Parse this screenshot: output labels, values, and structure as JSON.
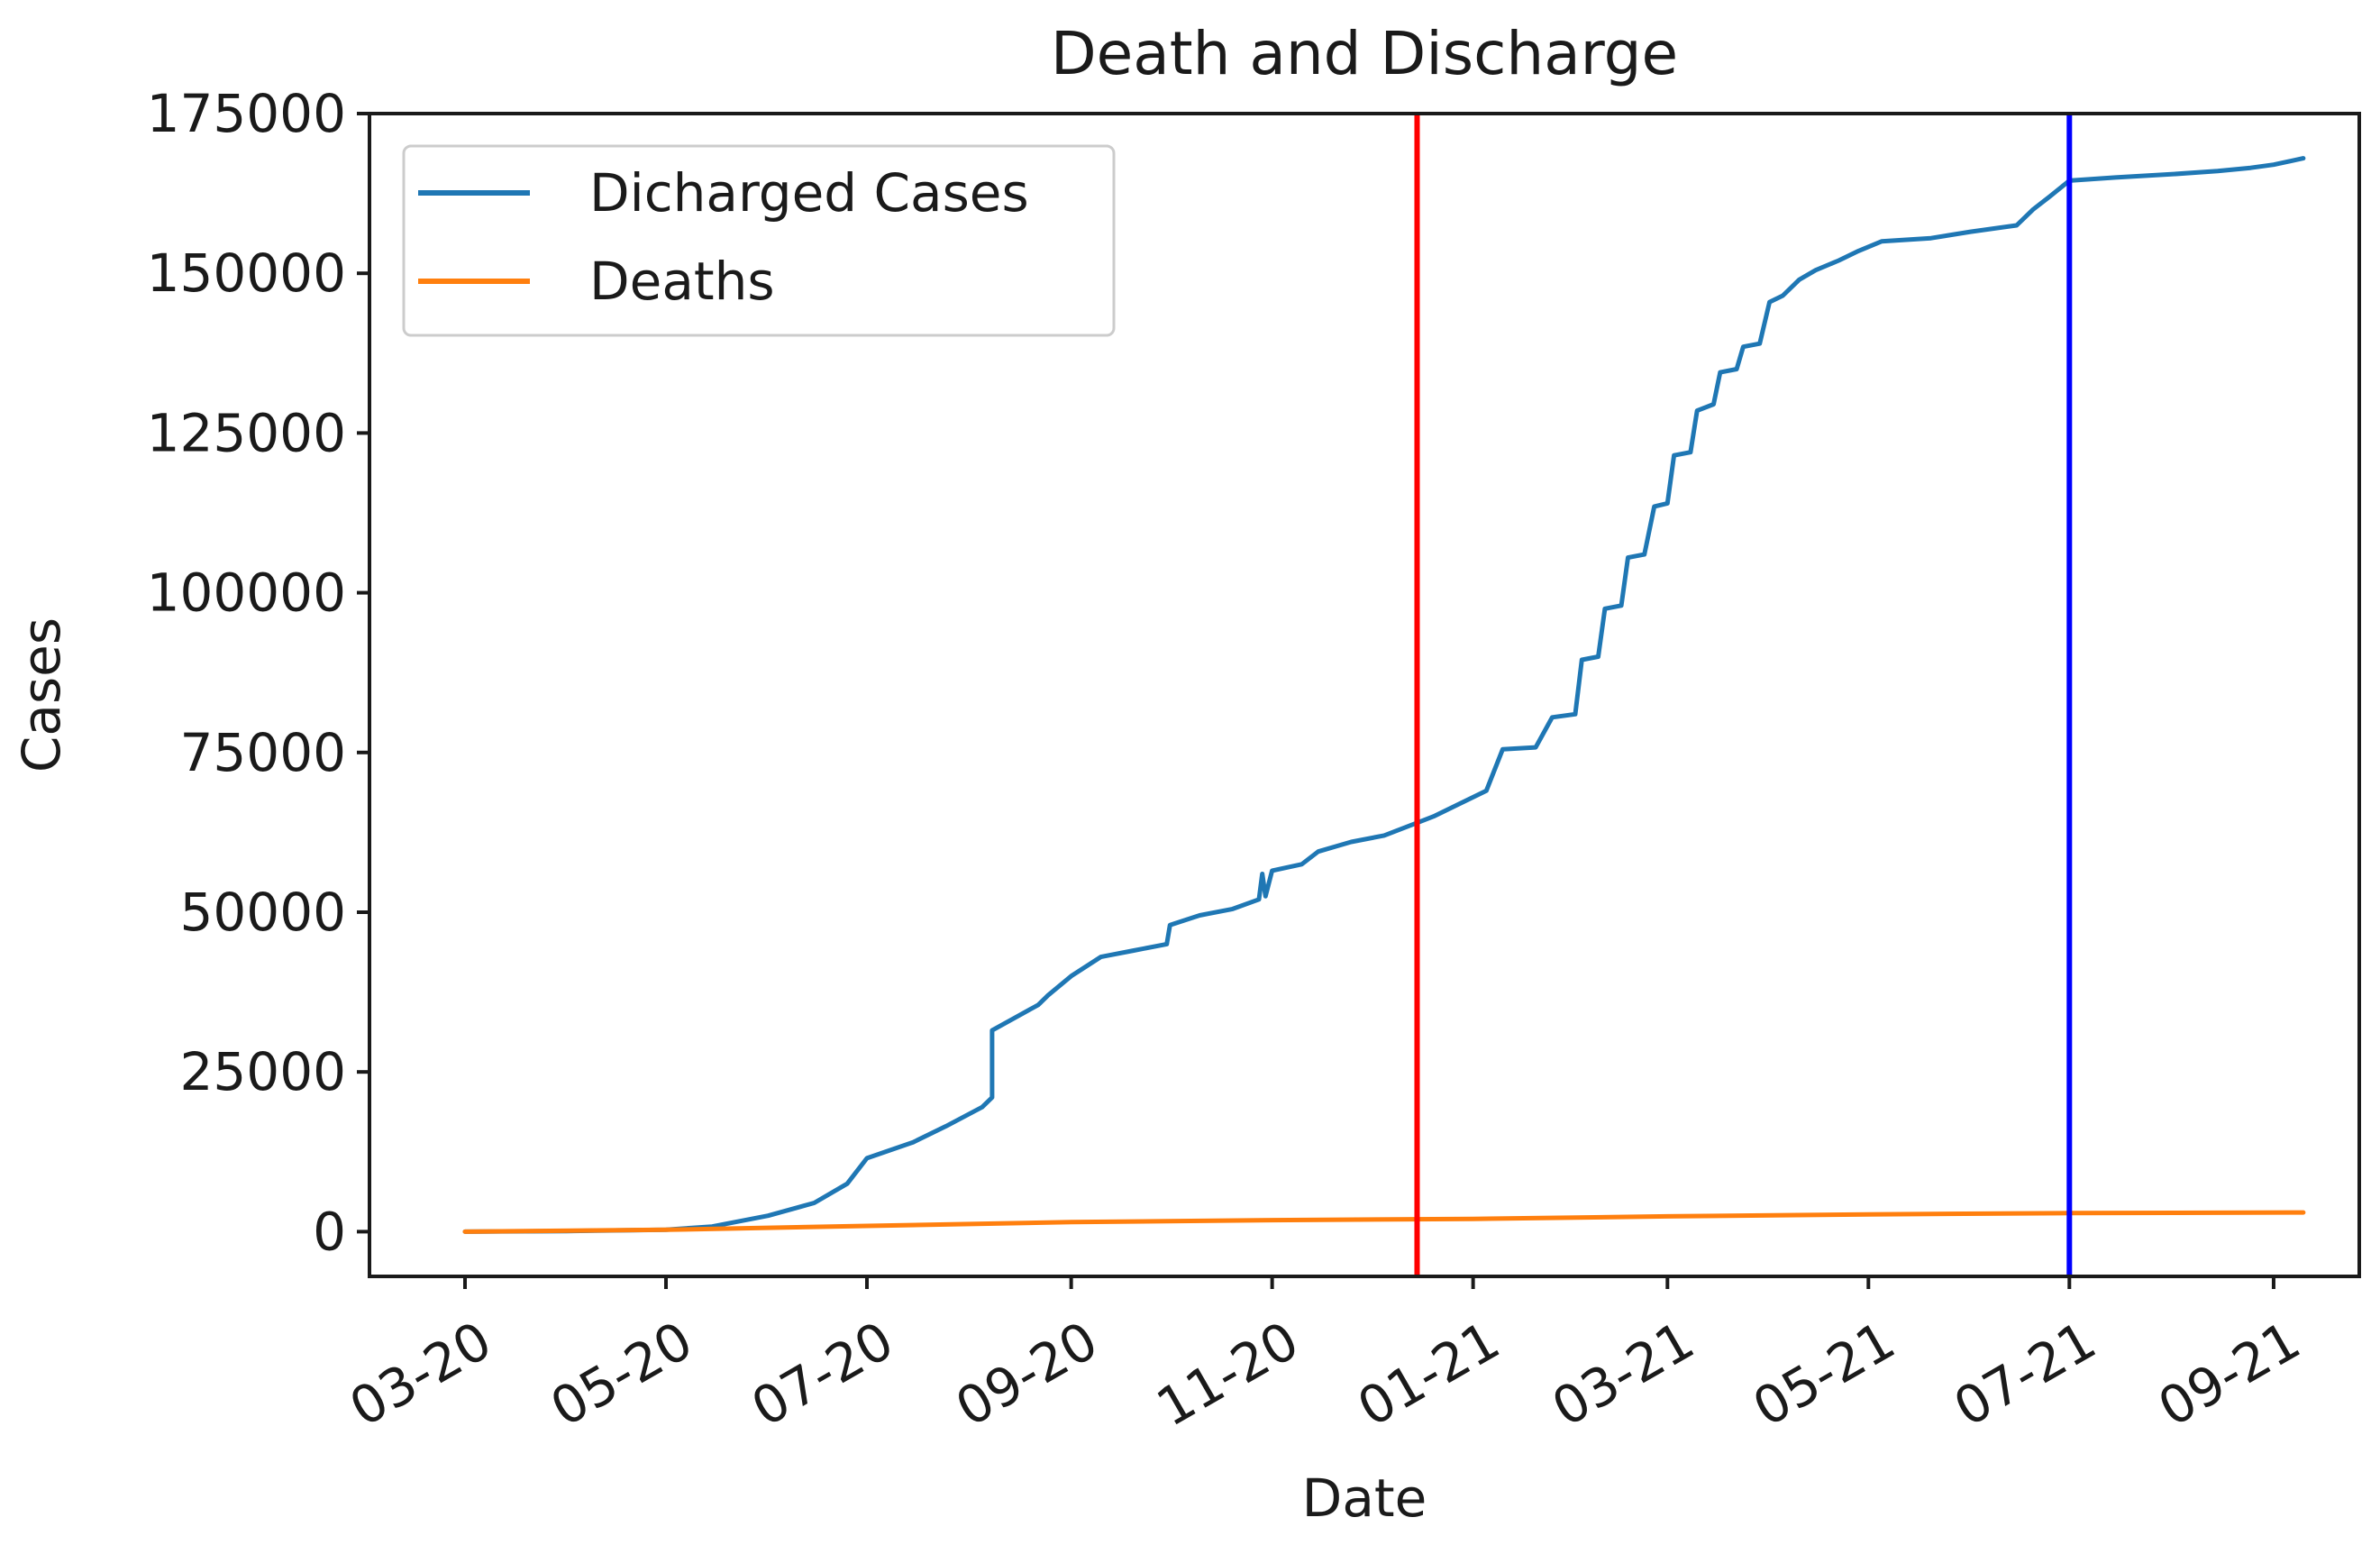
{
  "chart_data": {
    "type": "line",
    "title": "Death and Discharge",
    "xlabel": "Date",
    "ylabel": "Cases",
    "xlim": [
      "2020-02-01",
      "2021-09-27"
    ],
    "ylim": [
      -7000,
      175000
    ],
    "x_ticks": [
      {
        "label": "03-20",
        "date": "2020-03-01"
      },
      {
        "label": "05-20",
        "date": "2020-05-01"
      },
      {
        "label": "07-20",
        "date": "2020-07-01"
      },
      {
        "label": "09-20",
        "date": "2020-09-01"
      },
      {
        "label": "11-20",
        "date": "2020-11-01"
      },
      {
        "label": "01-21",
        "date": "2021-01-01"
      },
      {
        "label": "03-21",
        "date": "2021-03-01"
      },
      {
        "label": "05-21",
        "date": "2021-05-01"
      },
      {
        "label": "07-21",
        "date": "2021-07-01"
      },
      {
        "label": "09-21",
        "date": "2021-09-01"
      }
    ],
    "y_ticks": [
      0,
      25000,
      50000,
      75000,
      100000,
      125000,
      150000,
      175000
    ],
    "y_tick_labels": [
      "0",
      "25000",
      "50000",
      "75000",
      "100000",
      "125000",
      "150000",
      "175000"
    ],
    "grid": false,
    "legend_position": "upper-left",
    "series": [
      {
        "name": "Dicharged Cases",
        "color": "#1f77b4",
        "points": [
          [
            "2020-03-01",
            0
          ],
          [
            "2020-04-01",
            100
          ],
          [
            "2020-05-01",
            300
          ],
          [
            "2020-05-15",
            800
          ],
          [
            "2020-06-01",
            2500
          ],
          [
            "2020-06-15",
            4500
          ],
          [
            "2020-06-25",
            7500
          ],
          [
            "2020-07-01",
            11500
          ],
          [
            "2020-07-15",
            14000
          ],
          [
            "2020-07-25",
            16500
          ],
          [
            "2020-08-05",
            19500
          ],
          [
            "2020-08-08",
            21000
          ],
          [
            "2020-08-08",
            31500
          ],
          [
            "2020-08-15",
            33500
          ],
          [
            "2020-08-22",
            35500
          ],
          [
            "2020-08-25",
            37000
          ],
          [
            "2020-09-01",
            40000
          ],
          [
            "2020-09-10",
            43000
          ],
          [
            "2020-09-20",
            44000
          ],
          [
            "2020-09-30",
            45000
          ],
          [
            "2020-10-01",
            48000
          ],
          [
            "2020-10-10",
            49500
          ],
          [
            "2020-10-20",
            50500
          ],
          [
            "2020-10-28",
            52000
          ],
          [
            "2020-10-29",
            56000
          ],
          [
            "2020-10-30",
            52500
          ],
          [
            "2020-11-01",
            56500
          ],
          [
            "2020-11-10",
            57500
          ],
          [
            "2020-11-15",
            59500
          ],
          [
            "2020-11-25",
            61000
          ],
          [
            "2020-12-05",
            62000
          ],
          [
            "2020-12-15",
            64000
          ],
          [
            "2020-12-20",
            65000
          ],
          [
            "2020-12-28",
            67000
          ],
          [
            "2021-01-05",
            69000
          ],
          [
            "2021-01-10",
            75500
          ],
          [
            "2021-01-20",
            75800
          ],
          [
            "2021-01-25",
            80500
          ],
          [
            "2021-02-01",
            81000
          ],
          [
            "2021-02-03",
            89500
          ],
          [
            "2021-02-08",
            90000
          ],
          [
            "2021-02-10",
            97500
          ],
          [
            "2021-02-15",
            98000
          ],
          [
            "2021-02-17",
            105500
          ],
          [
            "2021-02-22",
            106000
          ],
          [
            "2021-02-25",
            113500
          ],
          [
            "2021-03-01",
            114000
          ],
          [
            "2021-03-03",
            121500
          ],
          [
            "2021-03-08",
            122000
          ],
          [
            "2021-03-10",
            128500
          ],
          [
            "2021-03-15",
            129500
          ],
          [
            "2021-03-17",
            134500
          ],
          [
            "2021-03-22",
            135000
          ],
          [
            "2021-03-24",
            138500
          ],
          [
            "2021-03-29",
            139000
          ],
          [
            "2021-04-01",
            145500
          ],
          [
            "2021-04-05",
            146500
          ],
          [
            "2021-04-10",
            149000
          ],
          [
            "2021-04-15",
            150500
          ],
          [
            "2021-04-22",
            152000
          ],
          [
            "2021-04-28",
            153500
          ],
          [
            "2021-05-05",
            155000
          ],
          [
            "2021-05-20",
            155500
          ],
          [
            "2021-06-01",
            156500
          ],
          [
            "2021-06-15",
            157500
          ],
          [
            "2021-06-20",
            160000
          ],
          [
            "2021-06-25",
            162000
          ],
          [
            "2021-07-01",
            164500
          ],
          [
            "2021-07-15",
            165000
          ],
          [
            "2021-08-01",
            165500
          ],
          [
            "2021-08-15",
            166000
          ],
          [
            "2021-08-25",
            166500
          ],
          [
            "2021-09-01",
            167000
          ],
          [
            "2021-09-10",
            168000
          ]
        ]
      },
      {
        "name": "Deaths",
        "color": "#ff7f0e",
        "points": [
          [
            "2020-03-01",
            0
          ],
          [
            "2020-05-01",
            300
          ],
          [
            "2020-07-01",
            900
          ],
          [
            "2020-09-01",
            1500
          ],
          [
            "2020-11-01",
            1800
          ],
          [
            "2021-01-01",
            2000
          ],
          [
            "2021-03-01",
            2400
          ],
          [
            "2021-05-01",
            2700
          ],
          [
            "2021-07-01",
            2900
          ],
          [
            "2021-09-10",
            3000
          ]
        ]
      }
    ],
    "vertical_lines": [
      {
        "date": "2020-12-15",
        "color": "#ff0000"
      },
      {
        "date": "2021-07-01",
        "color": "#0000ff"
      }
    ]
  }
}
